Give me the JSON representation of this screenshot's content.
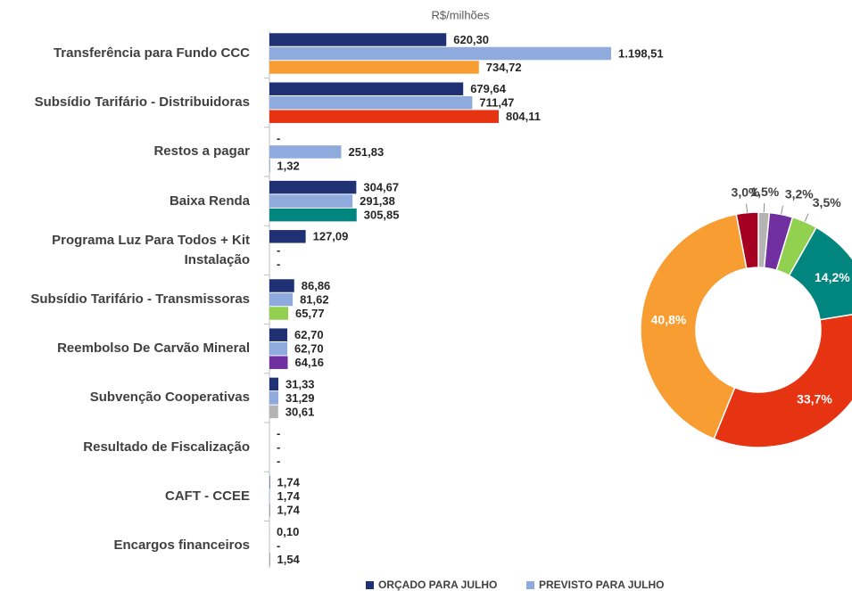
{
  "chart_data": [
    {
      "type": "barh",
      "axis_label": "R$/milhões",
      "categories": [
        "Transferência para Fundo CCC",
        "Subsídio Tarifário - Distribuidoras",
        "Restos a pagar",
        "Baixa Renda",
        "Programa Luz Para Todos + Kit Instalação",
        "Subsídio Tarifário - Transmissoras",
        "Reembolso De Carvão Mineral",
        "Subvenção Cooperativas",
        "Resultado de Fiscalização",
        "CAFT - CCEE",
        "Encargos financeiros"
      ],
      "xlim": [
        0,
        1200
      ],
      "series": [
        {
          "name": "ORÇADO PARA JULHO",
          "color": "#1f3173",
          "values": [
            620.3,
            679.64,
            0,
            304.67,
            127.09,
            86.86,
            62.7,
            31.33,
            0,
            1.74,
            0.1
          ],
          "value_labels": [
            "620,30",
            "679,64",
            "-",
            "304,67",
            "127,09",
            "86,86",
            "62,70",
            "31,33",
            "-",
            "1,74",
            "0,10"
          ]
        },
        {
          "name": "PREVISTO PARA JULHO",
          "color": "#8faadc",
          "values": [
            1198.51,
            711.47,
            251.83,
            291.38,
            0,
            81.62,
            62.7,
            31.29,
            0,
            1.74,
            0
          ],
          "value_labels": [
            "1.198,51",
            "711,47",
            "251,83",
            "291,38",
            "-",
            "81,62",
            "62,70",
            "31,29",
            "-",
            "1,74",
            "-"
          ]
        },
        {
          "colors": [
            "#f79d32",
            "#e63312",
            "#2f5597",
            "#00857f",
            "#a50021",
            "#92d050",
            "#7030a0",
            "#b4b4b4",
            "#555555",
            "#555555",
            "#555555"
          ],
          "values": [
            734.72,
            804.11,
            1.32,
            305.85,
            0,
            65.77,
            64.16,
            30.61,
            0,
            1.74,
            1.54
          ],
          "value_labels": [
            "734,72",
            "804,11",
            "1,32",
            "305,85",
            "-",
            "65,77",
            "64,16",
            "30,61",
            "-",
            "1,74",
            "1,54"
          ]
        }
      ]
    },
    {
      "type": "donut",
      "values": [
        1.5,
        3.2,
        3.5,
        14.2,
        33.7,
        40.8,
        3.0
      ],
      "value_labels": [
        "1,5%",
        "3,2%",
        "3,5%",
        "14,2%",
        "33,7%",
        "40,8%",
        "3,0%"
      ],
      "colors": [
        "#b4b4b4",
        "#7030a0",
        "#92d050",
        "#00857f",
        "#e63312",
        "#f79d32",
        "#a50021"
      ]
    }
  ]
}
